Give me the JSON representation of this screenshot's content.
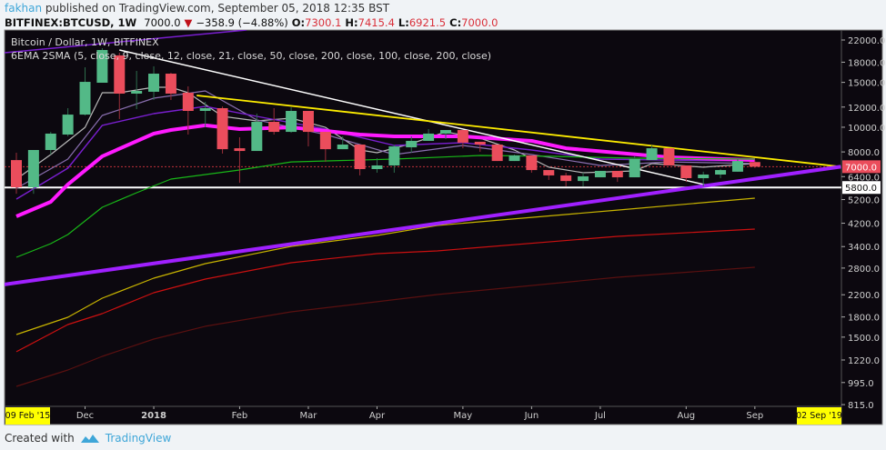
{
  "header": {
    "user": "fakhan",
    "published": "published on TradingView.com, September 05, 2018 12:35 BST",
    "symbol": "BITFINEX:BTCUSD, 1W",
    "last": "7000.0",
    "change": "−358.9 (−4.88%)",
    "o_label": "O:",
    "o": "7300.1",
    "h_label": "H:",
    "h": "7415.4",
    "l_label": "L:",
    "l": "6921.5",
    "c_label": "C:",
    "c": "7000.0"
  },
  "legend": {
    "title": "Bitcoin / Dollar, 1W, BITFINEX",
    "indicator": "6EMA 2SMA (5, close, 9, close, 12, close, 21, close, 50, close, 200, close, 100, close, 200, close)"
  },
  "footer": {
    "created_with": "Created with",
    "brand": "TradingView"
  },
  "colors": {
    "bg": "#0c080f",
    "up": "#53b987",
    "down": "#eb4d5c",
    "price_tag": "#eb4d5c",
    "date_tag": "#ffff00"
  },
  "chart_data": {
    "type": "candlestick",
    "title": "Bitcoin / Dollar, 1W, BITFINEX",
    "scale": "log",
    "ylim": [
      800,
      24000
    ],
    "y_ticks": [
      22000,
      18000,
      15000,
      12000,
      10000,
      8000,
      6400,
      5200,
      4200,
      3400,
      2800,
      2200,
      1800,
      1500,
      1220,
      995,
      815
    ],
    "y_tick_labels": [
      "22000.0",
      "18000.0",
      "15000.0",
      "12000.0",
      "10000.0",
      "8000.0",
      "6400.0",
      "5200.0",
      "4200.0",
      "3400.0",
      "2800.0",
      "2200.0",
      "1800.0",
      "1500.0",
      "1220.0",
      "995.0",
      "815.0"
    ],
    "x_ticks": [
      {
        "label": "Dec",
        "index": 4
      },
      {
        "label": "2018",
        "index": 8
      },
      {
        "label": "Feb",
        "index": 13
      },
      {
        "label": "Mar",
        "index": 17
      },
      {
        "label": "Apr",
        "index": 21
      },
      {
        "label": "May",
        "index": 26
      },
      {
        "label": "Jun",
        "index": 30
      },
      {
        "label": "Jul",
        "index": 34
      },
      {
        "label": "Aug",
        "index": 39
      },
      {
        "label": "Sep",
        "index": 43
      }
    ],
    "range_start_label": "09 Feb '15",
    "range_end_label": "02 Sep '19",
    "last_price_label": "7000.0",
    "last_price": 7000,
    "support_label": "5800.0",
    "support_price": 5800,
    "candles": [
      [
        7430,
        7940,
        5480,
        5810
      ],
      [
        5810,
        8140,
        5480,
        8140
      ],
      [
        8140,
        9590,
        7815,
        9440
      ],
      [
        9360,
        11880,
        9210,
        11210
      ],
      [
        11210,
        17190,
        11120,
        15070
      ],
      [
        14950,
        20430,
        14950,
        20100
      ],
      [
        19140,
        19600,
        10770,
        13550
      ],
      [
        13550,
        16640,
        11780,
        13890
      ],
      [
        13780,
        17340,
        12790,
        16230
      ],
      [
        16230,
        16360,
        12790,
        13550
      ],
      [
        13660,
        14470,
        9360,
        11590
      ],
      [
        11590,
        12580,
        9990,
        11880
      ],
      [
        11880,
        12070,
        7880,
        8200
      ],
      [
        8270,
        9130,
        6050,
        8070
      ],
      [
        8070,
        11310,
        8070,
        10500
      ],
      [
        10500,
        11880,
        9360,
        9590
      ],
      [
        9590,
        11980,
        9510,
        11590
      ],
      [
        11590,
        11590,
        8410,
        9590
      ],
      [
        9590,
        9590,
        7310,
        8200
      ],
      [
        8200,
        9210,
        8200,
        8550
      ],
      [
        8550,
        8550,
        6470,
        6850
      ],
      [
        6850,
        7560,
        6630,
        7080
      ],
      [
        7080,
        8550,
        6630,
        8410
      ],
      [
        8340,
        9210,
        7940,
        8840
      ],
      [
        8840,
        9830,
        8840,
        9440
      ],
      [
        9440,
        9750,
        8980,
        9750
      ],
      [
        9750,
        9750,
        8270,
        8700
      ],
      [
        8770,
        8770,
        8010,
        8550
      ],
      [
        8550,
        8550,
        7370,
        7370
      ],
      [
        7370,
        7815,
        7370,
        7750
      ],
      [
        7750,
        7750,
        6630,
        6790
      ],
      [
        6790,
        6790,
        6210,
        6470
      ],
      [
        6470,
        6630,
        5860,
        6150
      ],
      [
        6150,
        6630,
        5860,
        6415
      ],
      [
        6360,
        6740,
        6360,
        6740
      ],
      [
        6740,
        6740,
        6100,
        6360
      ],
      [
        6360,
        7690,
        6360,
        7500
      ],
      [
        7430,
        8480,
        7430,
        8270
      ],
      [
        8270,
        8270,
        7080,
        7080
      ],
      [
        7080,
        7080,
        6100,
        6310
      ],
      [
        6310,
        6690,
        5860,
        6520
      ],
      [
        6520,
        6850,
        6310,
        6790
      ],
      [
        6690,
        7500,
        6690,
        7370
      ],
      [
        7300,
        7415.4,
        6921.5,
        7000
      ]
    ],
    "series": [
      {
        "name": "EMA 5",
        "color": "#b8b8b8",
        "width": 1.2,
        "points": [
          [
            0,
            6258
          ],
          [
            2,
            7815
          ],
          [
            4,
            9990
          ],
          [
            5,
            13660
          ],
          [
            6,
            13660
          ],
          [
            8,
            14350
          ],
          [
            9,
            14350
          ],
          [
            10,
            13660
          ],
          [
            12,
            11030
          ],
          [
            14,
            10590
          ],
          [
            16,
            10850
          ],
          [
            18,
            9990
          ],
          [
            20,
            8140
          ],
          [
            21,
            7940
          ],
          [
            23,
            8620
          ],
          [
            25,
            9590
          ],
          [
            27,
            9060
          ],
          [
            29,
            8140
          ],
          [
            31,
            6970
          ],
          [
            33,
            6630
          ],
          [
            36,
            6740
          ],
          [
            37,
            7200
          ],
          [
            40,
            6970
          ],
          [
            43,
            7200
          ]
        ]
      },
      {
        "name": "EMA 9",
        "color": "#8a6fb0",
        "width": 1.2,
        "points": [
          [
            0,
            5760
          ],
          [
            3,
            7500
          ],
          [
            5,
            11120
          ],
          [
            8,
            13000
          ],
          [
            11,
            13890
          ],
          [
            14,
            10680
          ],
          [
            18,
            9360
          ],
          [
            22,
            7815
          ],
          [
            26,
            8480
          ],
          [
            30,
            7815
          ],
          [
            34,
            7080
          ],
          [
            38,
            7310
          ],
          [
            43,
            7200
          ]
        ]
      },
      {
        "name": "EMA 12",
        "color": "#7a1fd0",
        "width": 1.4,
        "points": [
          [
            0,
            5223
          ],
          [
            3,
            6905
          ],
          [
            5,
            10170
          ],
          [
            8,
            11310
          ],
          [
            11,
            12070
          ],
          [
            14,
            11030
          ],
          [
            18,
            9830
          ],
          [
            22,
            8480
          ],
          [
            26,
            8700
          ],
          [
            30,
            8140
          ],
          [
            34,
            7500
          ],
          [
            38,
            7430
          ],
          [
            43,
            7370
          ]
        ]
      },
      {
        "name": "EMA 21",
        "color": "#ff1aff",
        "width": 4,
        "points": [
          [
            0,
            4469
          ],
          [
            2,
            5096
          ],
          [
            3,
            5960
          ],
          [
            5,
            7690
          ],
          [
            8,
            9440
          ],
          [
            9,
            9750
          ],
          [
            11,
            10170
          ],
          [
            13,
            9830
          ],
          [
            16,
            9990
          ],
          [
            17,
            9830
          ],
          [
            20,
            9360
          ],
          [
            22,
            9210
          ],
          [
            26,
            9210
          ],
          [
            30,
            8840
          ],
          [
            32,
            8270
          ],
          [
            38,
            7620
          ],
          [
            43,
            7430
          ]
        ]
      },
      {
        "name": "EMA 50",
        "color": "#18b818",
        "width": 1.2,
        "points": [
          [
            0,
            3087
          ],
          [
            2,
            3491
          ],
          [
            3,
            3791
          ],
          [
            5,
            4851
          ],
          [
            7,
            5534
          ],
          [
            9,
            6258
          ],
          [
            13,
            6794
          ],
          [
            16,
            7310
          ],
          [
            22,
            7500
          ],
          [
            27,
            7750
          ],
          [
            31,
            7690
          ],
          [
            36,
            7560
          ],
          [
            43,
            7500
          ]
        ]
      },
      {
        "name": "EMA 200",
        "color": "#c8b400",
        "width": 1.2,
        "points": [
          [
            0,
            1535
          ],
          [
            3,
            1795
          ],
          [
            5,
            2132
          ],
          [
            8,
            2556
          ],
          [
            11,
            2915
          ],
          [
            16,
            3406
          ],
          [
            21,
            3760
          ],
          [
            24.5,
            4116
          ],
          [
            35,
            4730
          ],
          [
            43,
            5266
          ]
        ]
      },
      {
        "name": "SMA 100",
        "color": "#cc1010",
        "width": 1.2,
        "points": [
          [
            0,
            1314
          ],
          [
            3,
            1681
          ],
          [
            5,
            1855
          ],
          [
            8,
            2241
          ],
          [
            11,
            2535
          ],
          [
            16,
            2939
          ],
          [
            21,
            3190
          ],
          [
            24.5,
            3271
          ],
          [
            35,
            3729
          ],
          [
            43,
            3983
          ]
        ]
      },
      {
        "name": "SMA 200",
        "color": "#5a1010",
        "width": 1.2,
        "points": [
          [
            0,
            961
          ],
          [
            3,
            1114
          ],
          [
            5,
            1261
          ],
          [
            8,
            1474
          ],
          [
            11,
            1655
          ],
          [
            16,
            1885
          ],
          [
            21,
            2065
          ],
          [
            24.5,
            2204
          ],
          [
            35,
            2576
          ],
          [
            43,
            2821
          ]
        ]
      }
    ],
    "trendlines": [
      {
        "name": "descending-resistance",
        "color": "#ffffff",
        "width": 1.5,
        "from": [
          6,
          20100
        ],
        "to": [
          40.5,
          5860
        ]
      },
      {
        "name": "descending-trendline",
        "color": "#ffee00",
        "width": 1.8,
        "from": [
          10.5,
          13330
        ],
        "to": [
          48,
          7000
        ]
      },
      {
        "name": "ascending-support",
        "color": "#a020ff",
        "width": 4,
        "from": [
          -0.7,
          2414
        ],
        "to": [
          48,
          7000
        ]
      },
      {
        "name": "ascending-channel-top",
        "color": "#7a1fd0",
        "width": 1.5,
        "from": [
          -0.7,
          19600
        ],
        "to": [
          13.4,
          24080
        ]
      }
    ]
  }
}
